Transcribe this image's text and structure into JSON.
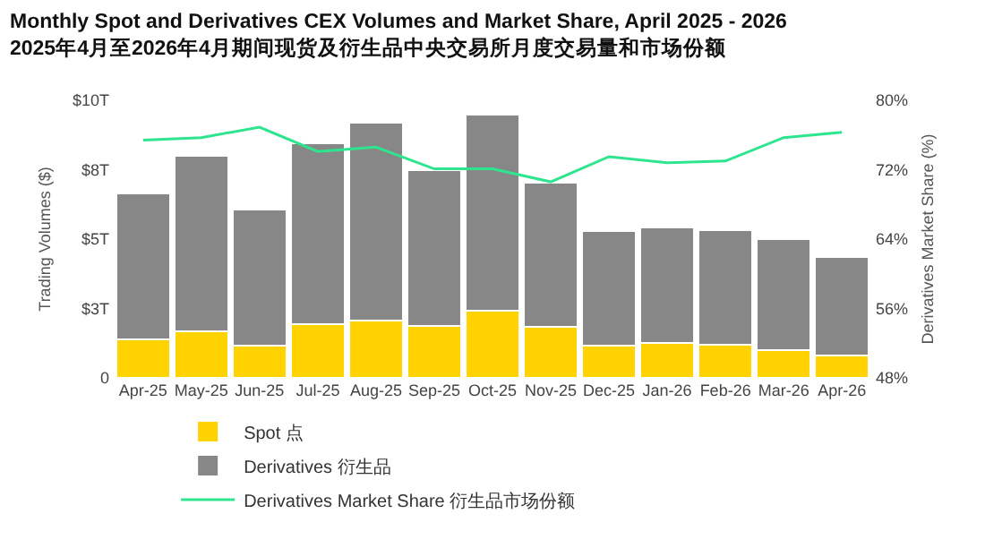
{
  "chart_data": {
    "type": "bar",
    "title": "Monthly Spot and Derivatives CEX Volumes and Market Share, April 2025 - 2026",
    "subtitle": "2025年4月至2026年4月期间现货及衍生品中央交易所月度交易量和市场份额",
    "ylabel": "Trading Volumes ($)",
    "y2label": "Derivatives Market Share (%)",
    "categories": [
      "Apr-25",
      "May-25",
      "Jun-25",
      "Jul-25",
      "Aug-25",
      "Sep-25",
      "Oct-25",
      "Nov-25",
      "Dec-25",
      "Jan-26",
      "Feb-26",
      "Mar-26",
      "Apr-26"
    ],
    "stacked": true,
    "series": [
      {
        "name": "Spot 点",
        "color": "#ffd200",
        "values": [
          1.4,
          1.68,
          1.17,
          1.94,
          2.08,
          1.87,
          2.41,
          1.84,
          1.17,
          1.25,
          1.2,
          0.99,
          0.82
        ]
      },
      {
        "name": "Derivatives 衍生品",
        "color": "#878787",
        "values": [
          5.25,
          6.32,
          4.89,
          6.52,
          7.1,
          5.62,
          7.08,
          5.18,
          4.11,
          4.18,
          4.12,
          4.0,
          3.52
        ]
      },
      {
        "name": "Derivatives Market Share 衍生品市场份额",
        "type": "line",
        "axis": "y2",
        "color": "#2ee58f",
        "values": [
          75.4,
          75.7,
          76.9,
          74.1,
          74.6,
          72.1,
          72.1,
          70.6,
          73.5,
          72.8,
          73.0,
          75.7,
          76.3
        ]
      }
    ],
    "ylim": [
      0,
      10
    ],
    "yticks": [
      0,
      {
        "value": 2.5,
        "label": "$3T"
      },
      {
        "value": 5,
        "label": "$5T"
      },
      {
        "value": 7.5,
        "label": "$8T"
      },
      {
        "value": 10,
        "label": "$10T"
      }
    ],
    "y2lim": [
      48,
      80
    ],
    "y2ticks": [
      {
        "value": 48,
        "label": "48%"
      },
      {
        "value": 56,
        "label": "56%"
      },
      {
        "value": 64,
        "label": "64%"
      },
      {
        "value": 72,
        "label": "72%"
      },
      {
        "value": 80,
        "label": "80%"
      }
    ],
    "grid": false,
    "legend": "bottom",
    "marker": "none",
    "line_style": "solid"
  }
}
